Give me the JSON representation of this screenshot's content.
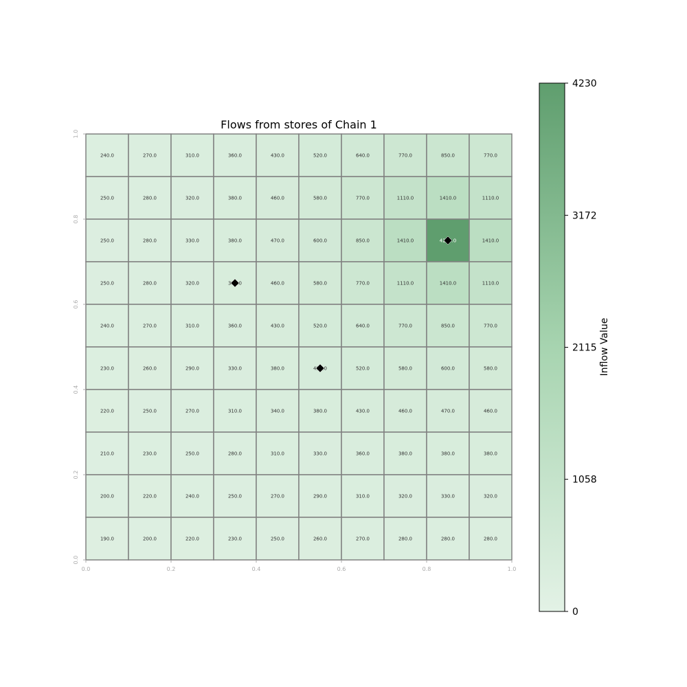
{
  "chart_data": {
    "type": "heatmap",
    "title": "Flows from stores of Chain 1",
    "x_ticks": [
      "0.0",
      "0.2",
      "0.4",
      "0.6",
      "0.8",
      "1.0"
    ],
    "y_ticks": [
      "0.0",
      "0.2",
      "0.4",
      "0.6",
      "0.8",
      "1.0"
    ],
    "xlim": [
      0,
      1
    ],
    "ylim": [
      0,
      1
    ],
    "grid_size": 10,
    "rows_top_to_bottom": [
      [
        "240.0",
        "270.0",
        "310.0",
        "360.0",
        "430.0",
        "520.0",
        "640.0",
        "770.0",
        "850.0",
        "770.0"
      ],
      [
        "250.0",
        "280.0",
        "320.0",
        "380.0",
        "460.0",
        "580.0",
        "770.0",
        "1110.0",
        "1410.0",
        "1110.0"
      ],
      [
        "250.0",
        "280.0",
        "330.0",
        "380.0",
        "470.0",
        "600.0",
        "850.0",
        "1410.0",
        "4230.0",
        "1410.0"
      ],
      [
        "250.0",
        "280.0",
        "320.0",
        "380.0",
        "460.0",
        "580.0",
        "770.0",
        "1110.0",
        "1410.0",
        "1110.0"
      ],
      [
        "240.0",
        "270.0",
        "310.0",
        "360.0",
        "430.0",
        "520.0",
        "640.0",
        "770.0",
        "850.0",
        "770.0"
      ],
      [
        "230.0",
        "260.0",
        "290.0",
        "330.0",
        "380.0",
        "450.0",
        "520.0",
        "580.0",
        "600.0",
        "580.0"
      ],
      [
        "220.0",
        "250.0",
        "270.0",
        "310.0",
        "340.0",
        "380.0",
        "430.0",
        "460.0",
        "470.0",
        "460.0"
      ],
      [
        "210.0",
        "230.0",
        "250.0",
        "280.0",
        "310.0",
        "330.0",
        "360.0",
        "380.0",
        "380.0",
        "380.0"
      ],
      [
        "200.0",
        "220.0",
        "240.0",
        "250.0",
        "270.0",
        "290.0",
        "310.0",
        "320.0",
        "330.0",
        "320.0"
      ],
      [
        "190.0",
        "200.0",
        "220.0",
        "230.0",
        "250.0",
        "260.0",
        "270.0",
        "280.0",
        "280.0",
        "280.0"
      ]
    ],
    "stores": [
      {
        "x": 0.35,
        "y": 0.65
      },
      {
        "x": 0.55,
        "y": 0.45
      },
      {
        "x": 0.85,
        "y": 0.75
      }
    ],
    "colorbar": {
      "label": "Inflow Value",
      "min": 0,
      "max": 4230,
      "ticks": [
        "0",
        "1058",
        "2115",
        "3172",
        "4230"
      ],
      "color_low": "#e3f2e6",
      "color_high": "#5f9e6e"
    },
    "colors": {
      "grid_line": "#808080",
      "marker": "#000000",
      "tick_text": "#aaaaaa"
    }
  }
}
